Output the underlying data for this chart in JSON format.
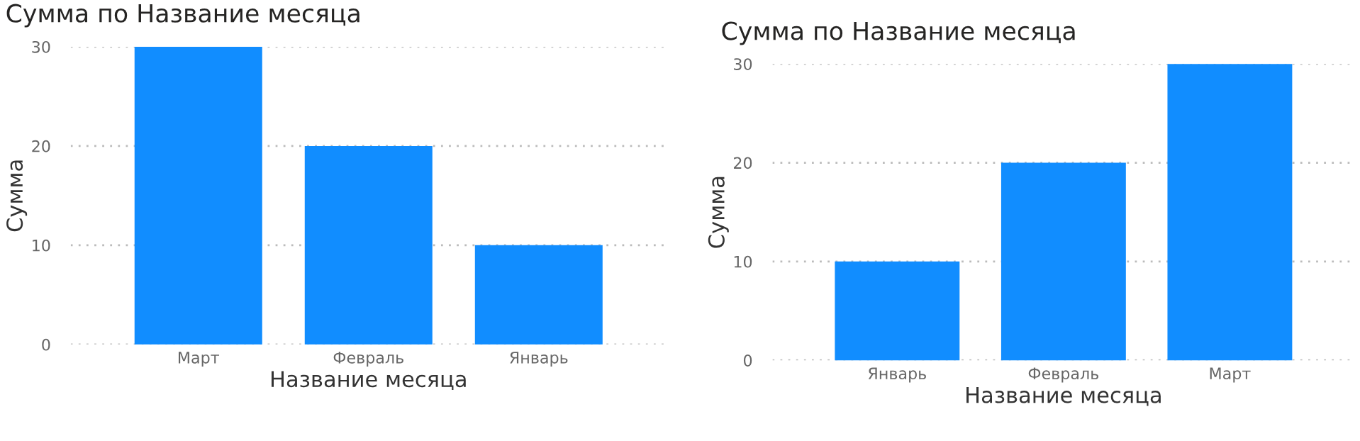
{
  "chart_data": [
    {
      "type": "bar",
      "title": "Сумма по Название месяца",
      "xlabel": "Название месяца",
      "ylabel": "Сумма",
      "categories": [
        "Март",
        "Февраль",
        "Январь"
      ],
      "values": [
        30,
        20,
        10
      ],
      "color": "#118dff",
      "ylim": [
        0,
        30
      ],
      "yticks": [
        0,
        10,
        20,
        30
      ],
      "grid": "y"
    },
    {
      "type": "bar",
      "title": "Сумма по Название месяца",
      "xlabel": "Название месяца",
      "ylabel": "Сумма",
      "categories": [
        "Январь",
        "Февраль",
        "Март"
      ],
      "values": [
        10,
        20,
        30
      ],
      "color": "#118dff",
      "ylim": [
        0,
        30
      ],
      "yticks": [
        0,
        10,
        20,
        30
      ],
      "grid": "y"
    }
  ]
}
